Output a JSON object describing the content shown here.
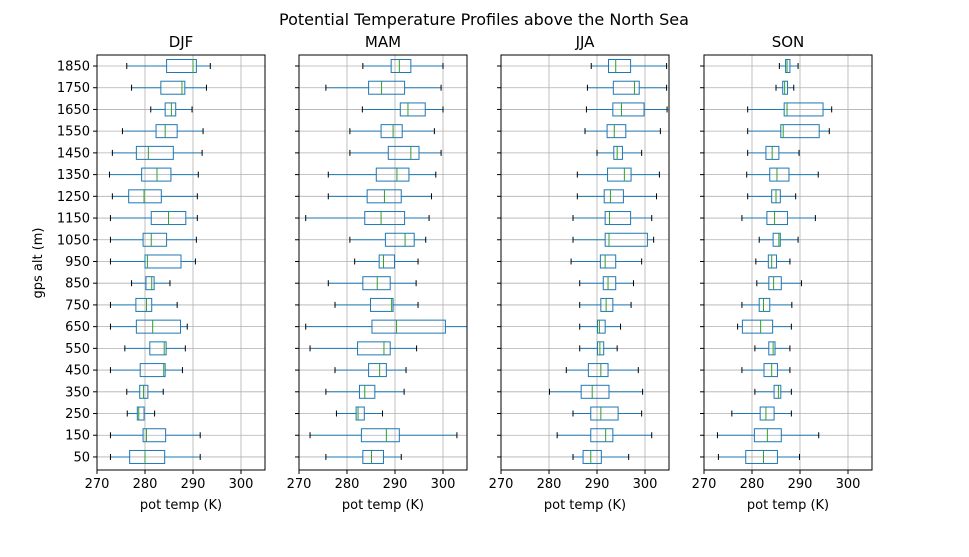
{
  "title": "Potential Temperature Profiles above the North Sea",
  "colors": {
    "box": "#1f77b4",
    "median": "#2ca02c",
    "grid": "#b0b0b0",
    "axis": "#000000"
  },
  "chart_data": {
    "type": "boxplot-horizontal",
    "suptitle": "Potential Temperature Profiles above the North Sea",
    "ylabel": "gps alt (m)",
    "y_ticks": [
      "1850",
      "1750",
      "1650",
      "1550",
      "1450",
      "1350",
      "1250",
      "1150",
      "1050",
      "950",
      "850",
      "750",
      "650",
      "550",
      "450",
      "350",
      "250",
      "150",
      "50"
    ],
    "x_ticks": [
      "270",
      "280",
      "290",
      "300"
    ],
    "grid": true,
    "panels": [
      {
        "title": "DJF",
        "xlabel": "pot temp (K)",
        "xlim": [
          270,
          305
        ],
        "boxes": [
          {
            "alt": 1850,
            "wlo": 276.2,
            "q1": 284.5,
            "med": 290.0,
            "q3": 290.7,
            "whi": 293.6
          },
          {
            "alt": 1750,
            "wlo": 277.2,
            "q1": 283.3,
            "med": 287.7,
            "q3": 288.3,
            "whi": 292.8
          },
          {
            "alt": 1650,
            "wlo": 281.2,
            "q1": 284.2,
            "med": 285.5,
            "q3": 286.4,
            "whi": 289.8
          },
          {
            "alt": 1550,
            "wlo": 275.3,
            "q1": 282.3,
            "med": 284.2,
            "q3": 286.7,
            "whi": 292.1
          },
          {
            "alt": 1450,
            "wlo": 273.2,
            "q1": 278.2,
            "med": 280.7,
            "q3": 285.9,
            "whi": 291.9
          },
          {
            "alt": 1350,
            "wlo": 272.6,
            "q1": 279.3,
            "med": 282.5,
            "q3": 285.4,
            "whi": 291.1
          },
          {
            "alt": 1250,
            "wlo": 273.2,
            "q1": 276.6,
            "med": 279.8,
            "q3": 283.4,
            "whi": 290.9
          },
          {
            "alt": 1150,
            "wlo": 272.8,
            "q1": 281.3,
            "med": 284.9,
            "q3": 288.5,
            "whi": 290.9
          },
          {
            "alt": 1050,
            "wlo": 272.8,
            "q1": 279.6,
            "med": 281.3,
            "q3": 284.5,
            "whi": 290.7
          },
          {
            "alt": 950,
            "wlo": 272.8,
            "q1": 280.0,
            "med": 280.5,
            "q3": 287.5,
            "whi": 290.5
          },
          {
            "alt": 850,
            "wlo": 277.2,
            "q1": 280.2,
            "med": 281.4,
            "q3": 281.9,
            "whi": 285.2
          },
          {
            "alt": 750,
            "wlo": 272.8,
            "q1": 278.1,
            "med": 280.3,
            "q3": 281.4,
            "whi": 286.7
          },
          {
            "alt": 650,
            "wlo": 272.8,
            "q1": 278.2,
            "med": 281.6,
            "q3": 287.4,
            "whi": 288.8
          },
          {
            "alt": 550,
            "wlo": 275.8,
            "q1": 281.0,
            "med": 284.0,
            "q3": 284.4,
            "whi": 288.4
          },
          {
            "alt": 450,
            "wlo": 272.8,
            "q1": 279.0,
            "med": 283.9,
            "q3": 284.2,
            "whi": 287.8
          },
          {
            "alt": 350,
            "wlo": 276.2,
            "q1": 278.9,
            "med": 279.7,
            "q3": 280.6,
            "whi": 283.8
          },
          {
            "alt": 250,
            "wlo": 276.3,
            "q1": 278.4,
            "med": 278.7,
            "q3": 279.8,
            "whi": 282.0
          },
          {
            "alt": 150,
            "wlo": 272.8,
            "q1": 279.6,
            "med": 280.3,
            "q3": 284.3,
            "whi": 291.5
          },
          {
            "alt": 50,
            "wlo": 272.8,
            "q1": 276.8,
            "med": 280.0,
            "q3": 284.1,
            "whi": 291.5
          }
        ]
      },
      {
        "title": "MAM",
        "xlabel": "pot temp (K)",
        "xlim": [
          270,
          305
        ],
        "boxes": [
          {
            "alt": 1850,
            "wlo": 283.3,
            "q1": 289.2,
            "med": 290.9,
            "q3": 293.3,
            "whi": 300.0
          },
          {
            "alt": 1750,
            "wlo": 275.6,
            "q1": 284.5,
            "med": 287.2,
            "q3": 292.0,
            "whi": 299.6
          },
          {
            "alt": 1650,
            "wlo": 283.2,
            "q1": 291.1,
            "med": 292.7,
            "q3": 296.3,
            "whi": 300.0
          },
          {
            "alt": 1550,
            "wlo": 280.6,
            "q1": 287.1,
            "med": 289.6,
            "q3": 291.5,
            "whi": 298.2
          },
          {
            "alt": 1450,
            "wlo": 280.6,
            "q1": 288.6,
            "med": 293.3,
            "q3": 295.0,
            "whi": 299.6
          },
          {
            "alt": 1350,
            "wlo": 276.1,
            "q1": 286.1,
            "med": 290.4,
            "q3": 292.9,
            "whi": 298.5
          },
          {
            "alt": 1250,
            "wlo": 276.1,
            "q1": 284.2,
            "med": 287.8,
            "q3": 291.3,
            "whi": 297.6
          },
          {
            "alt": 1150,
            "wlo": 271.4,
            "q1": 283.7,
            "med": 287.1,
            "q3": 292.0,
            "whi": 297.1
          },
          {
            "alt": 1050,
            "wlo": 280.6,
            "q1": 288.0,
            "med": 292.1,
            "q3": 294.0,
            "whi": 296.4
          },
          {
            "alt": 950,
            "wlo": 281.6,
            "q1": 286.7,
            "med": 287.6,
            "q3": 289.9,
            "whi": 294.8
          },
          {
            "alt": 850,
            "wlo": 276.1,
            "q1": 283.3,
            "med": 286.3,
            "q3": 289.0,
            "whi": 294.4
          },
          {
            "alt": 750,
            "wlo": 277.5,
            "q1": 284.9,
            "med": 289.3,
            "q3": 289.6,
            "whi": 294.8
          },
          {
            "alt": 650,
            "wlo": 271.4,
            "q1": 285.2,
            "med": 290.3,
            "q3": 300.5,
            "whi": 305.0
          },
          {
            "alt": 550,
            "wlo": 272.3,
            "q1": 282.2,
            "med": 287.7,
            "q3": 289.0,
            "whi": 294.5
          },
          {
            "alt": 450,
            "wlo": 277.5,
            "q1": 284.5,
            "med": 286.8,
            "q3": 288.2,
            "whi": 292.3
          },
          {
            "alt": 350,
            "wlo": 275.6,
            "q1": 282.6,
            "med": 283.7,
            "q3": 285.8,
            "whi": 291.9
          },
          {
            "alt": 250,
            "wlo": 277.8,
            "q1": 281.9,
            "med": 282.3,
            "q3": 283.6,
            "whi": 287.4
          },
          {
            "alt": 150,
            "wlo": 272.3,
            "q1": 283.0,
            "med": 288.2,
            "q3": 290.9,
            "whi": 302.9
          },
          {
            "alt": 50,
            "wlo": 275.6,
            "q1": 283.3,
            "med": 285.1,
            "q3": 287.6,
            "whi": 291.3
          }
        ]
      },
      {
        "title": "JJA",
        "xlabel": "pot temp (K)",
        "xlim": [
          270,
          305
        ],
        "boxes": [
          {
            "alt": 1850,
            "wlo": 288.8,
            "q1": 292.4,
            "med": 293.9,
            "q3": 297.0,
            "whi": 304.5
          },
          {
            "alt": 1750,
            "wlo": 288.0,
            "q1": 293.4,
            "med": 297.8,
            "q3": 298.8,
            "whi": 304.5
          },
          {
            "alt": 1650,
            "wlo": 287.8,
            "q1": 293.3,
            "med": 295.1,
            "q3": 299.8,
            "whi": 304.6
          },
          {
            "alt": 1550,
            "wlo": 287.5,
            "q1": 292.1,
            "med": 293.6,
            "q3": 296.0,
            "whi": 303.2
          },
          {
            "alt": 1450,
            "wlo": 290.0,
            "q1": 293.5,
            "med": 294.2,
            "q3": 295.3,
            "whi": 299.3
          },
          {
            "alt": 1350,
            "wlo": 285.9,
            "q1": 292.2,
            "med": 295.7,
            "q3": 297.1,
            "whi": 303.0
          },
          {
            "alt": 1250,
            "wlo": 285.9,
            "q1": 291.5,
            "med": 292.8,
            "q3": 295.5,
            "whi": 302.4
          },
          {
            "alt": 1150,
            "wlo": 285.0,
            "q1": 291.7,
            "med": 292.6,
            "q3": 297.0,
            "whi": 301.4
          },
          {
            "alt": 1050,
            "wlo": 285.0,
            "q1": 291.7,
            "med": 292.5,
            "q3": 300.5,
            "whi": 301.8
          },
          {
            "alt": 950,
            "wlo": 284.6,
            "q1": 290.7,
            "med": 291.7,
            "q3": 293.9,
            "whi": 299.3
          },
          {
            "alt": 850,
            "wlo": 286.4,
            "q1": 291.3,
            "med": 292.3,
            "q3": 293.9,
            "whi": 297.6
          },
          {
            "alt": 750,
            "wlo": 286.4,
            "q1": 290.8,
            "med": 291.9,
            "q3": 293.3,
            "whi": 297.1
          },
          {
            "alt": 650,
            "wlo": 286.4,
            "q1": 290.1,
            "med": 290.5,
            "q3": 291.7,
            "whi": 294.9
          },
          {
            "alt": 550,
            "wlo": 286.4,
            "q1": 290.1,
            "med": 290.6,
            "q3": 291.4,
            "whi": 294.2
          },
          {
            "alt": 450,
            "wlo": 283.6,
            "q1": 288.2,
            "med": 290.8,
            "q3": 292.3,
            "whi": 298.6
          },
          {
            "alt": 350,
            "wlo": 280.1,
            "q1": 286.7,
            "med": 289.0,
            "q3": 292.5,
            "whi": 299.5
          },
          {
            "alt": 250,
            "wlo": 285.0,
            "q1": 288.7,
            "med": 290.8,
            "q3": 294.4,
            "whi": 299.3
          },
          {
            "alt": 150,
            "wlo": 281.7,
            "q1": 288.7,
            "med": 291.8,
            "q3": 293.3,
            "whi": 301.4
          },
          {
            "alt": 50,
            "wlo": 285.0,
            "q1": 287.1,
            "med": 288.7,
            "q3": 290.9,
            "whi": 296.6
          }
        ]
      },
      {
        "title": "SON",
        "xlabel": "pot temp (K)",
        "xlim": [
          270,
          305
        ],
        "boxes": [
          {
            "alt": 1850,
            "wlo": 285.7,
            "q1": 287.0,
            "med": 287.3,
            "q3": 287.9,
            "whi": 289.6
          },
          {
            "alt": 1750,
            "wlo": 285.0,
            "q1": 286.4,
            "med": 286.8,
            "q3": 287.4,
            "whi": 288.7
          },
          {
            "alt": 1650,
            "wlo": 279.1,
            "q1": 286.7,
            "med": 287.3,
            "q3": 294.8,
            "whi": 296.6
          },
          {
            "alt": 1550,
            "wlo": 279.1,
            "q1": 286.0,
            "med": 286.5,
            "q3": 294.0,
            "whi": 296.1
          },
          {
            "alt": 1450,
            "wlo": 279.1,
            "q1": 282.9,
            "med": 284.2,
            "q3": 285.6,
            "whi": 289.8
          },
          {
            "alt": 1350,
            "wlo": 278.9,
            "q1": 283.7,
            "med": 285.2,
            "q3": 287.7,
            "whi": 293.8
          },
          {
            "alt": 1250,
            "wlo": 279.1,
            "q1": 284.1,
            "med": 285.0,
            "q3": 285.9,
            "whi": 289.1
          },
          {
            "alt": 1150,
            "wlo": 277.9,
            "q1": 283.1,
            "med": 284.7,
            "q3": 287.4,
            "whi": 293.2
          },
          {
            "alt": 1050,
            "wlo": 281.5,
            "q1": 284.4,
            "med": 285.6,
            "q3": 285.9,
            "whi": 289.6
          },
          {
            "alt": 950,
            "wlo": 280.8,
            "q1": 283.4,
            "med": 284.1,
            "q3": 285.1,
            "whi": 287.9
          },
          {
            "alt": 850,
            "wlo": 281.0,
            "q1": 283.5,
            "med": 284.5,
            "q3": 286.1,
            "whi": 290.3
          },
          {
            "alt": 750,
            "wlo": 277.9,
            "q1": 281.5,
            "med": 282.4,
            "q3": 283.7,
            "whi": 288.3
          },
          {
            "alt": 650,
            "wlo": 277.0,
            "q1": 278.0,
            "med": 281.8,
            "q3": 284.3,
            "whi": 288.2
          },
          {
            "alt": 550,
            "wlo": 280.6,
            "q1": 283.5,
            "med": 284.4,
            "q3": 284.8,
            "whi": 287.9
          },
          {
            "alt": 450,
            "wlo": 277.9,
            "q1": 282.5,
            "med": 284.1,
            "q3": 285.3,
            "whi": 287.9
          },
          {
            "alt": 350,
            "wlo": 280.6,
            "q1": 284.6,
            "med": 285.5,
            "q3": 286.0,
            "whi": 288.2
          },
          {
            "alt": 250,
            "wlo": 275.8,
            "q1": 281.7,
            "med": 282.9,
            "q3": 284.6,
            "whi": 288.2
          },
          {
            "alt": 150,
            "wlo": 272.8,
            "q1": 280.5,
            "med": 283.2,
            "q3": 286.1,
            "whi": 293.9
          },
          {
            "alt": 50,
            "wlo": 273.0,
            "q1": 278.7,
            "med": 282.4,
            "q3": 285.3,
            "whi": 289.9
          }
        ]
      }
    ]
  }
}
